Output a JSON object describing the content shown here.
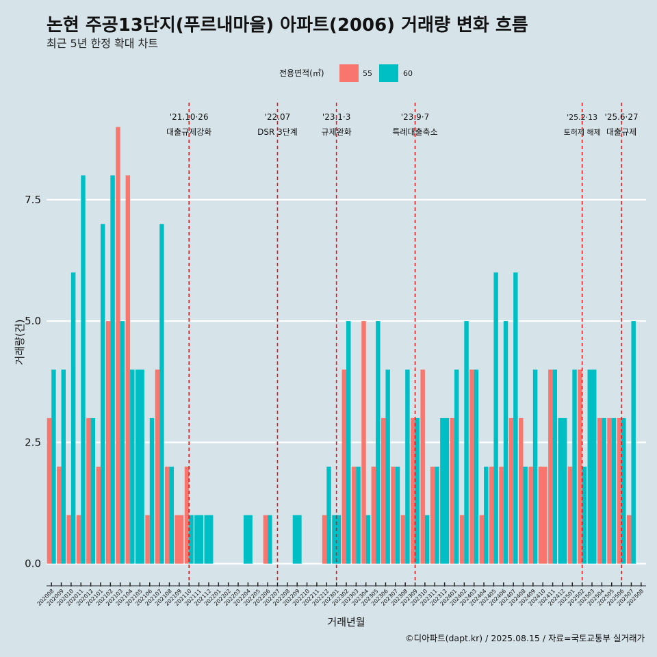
{
  "chart_data": {
    "type": "bar",
    "title": "논현 주공13단지(푸르내마을) 아파트(2006) 거래량 변화 흐름",
    "subtitle": "최근 5년 한정 확대 차트",
    "xlabel": "거래년월",
    "ylabel": "거래량(건)",
    "ylim": [
      -0.4,
      9.5
    ],
    "yticks": [
      0,
      2.5,
      5,
      7.5
    ],
    "ytick_labels": [
      "0.0",
      "2.5",
      "5.0",
      "7.5"
    ],
    "legend": {
      "title": "전용면적(㎡)",
      "position": "top",
      "entries": [
        {
          "name": "55",
          "color": "#f8766d"
        },
        {
          "name": "60",
          "color": "#00bfc4"
        }
      ]
    },
    "categories": [
      "202008",
      "202009",
      "202010",
      "202011",
      "202012",
      "202101",
      "202102",
      "202103",
      "202104",
      "202105",
      "202106",
      "202107",
      "202108",
      "202109",
      "202110",
      "202111",
      "202112",
      "202201",
      "202202",
      "202203",
      "202204",
      "202205",
      "202206",
      "202207",
      "202208",
      "202209",
      "202210",
      "202211",
      "202212",
      "202301",
      "202302",
      "202303",
      "202304",
      "202305",
      "202306",
      "202307",
      "202308",
      "202309",
      "202310",
      "202311",
      "202312",
      "202401",
      "202402",
      "202403",
      "202404",
      "202405",
      "202406",
      "202407",
      "202408",
      "202409",
      "202410",
      "202411",
      "202412",
      "202501",
      "202502",
      "202503",
      "202504",
      "202505",
      "202506",
      "202507",
      "202508"
    ],
    "series": [
      {
        "name": "55",
        "color": "#f8766d",
        "values": [
          3,
          2,
          1,
          1,
          3,
          2,
          5,
          9,
          8,
          null,
          1,
          4,
          2,
          1,
          2,
          null,
          null,
          null,
          null,
          null,
          null,
          null,
          1,
          null,
          null,
          null,
          null,
          null,
          1,
          null,
          4,
          2,
          5,
          2,
          3,
          2,
          1,
          3,
          4,
          2,
          null,
          3,
          1,
          4,
          1,
          2,
          2,
          3,
          3,
          2,
          2,
          4,
          null,
          2,
          4,
          null,
          3,
          3,
          3,
          1,
          null
        ]
      },
      {
        "name": "60",
        "color": "#00bfc4",
        "values": [
          4,
          4,
          6,
          8,
          3,
          7,
          8,
          5,
          4,
          4,
          3,
          7,
          2,
          null,
          1,
          1,
          1,
          null,
          null,
          null,
          1,
          null,
          1,
          null,
          null,
          1,
          null,
          null,
          2,
          1,
          5,
          2,
          1,
          5,
          4,
          2,
          4,
          3,
          1,
          2,
          3,
          4,
          5,
          4,
          2,
          6,
          5,
          6,
          2,
          4,
          null,
          4,
          3,
          4,
          2,
          4,
          3,
          3,
          3,
          5,
          null
        ]
      }
    ],
    "events": [
      {
        "category": "202110",
        "date": "'21.10·26",
        "label": "대출규제강화"
      },
      {
        "category": "202207",
        "date": "'22.07",
        "label": "DSR 3단계"
      },
      {
        "category": "202301",
        "date": "'23.1·3",
        "label": "규제완화"
      },
      {
        "category": "202309",
        "date": "'23.9·7",
        "label": "특례대출축소"
      },
      {
        "category": "202502",
        "date": "'25.2·13",
        "label": "토허제 해제"
      },
      {
        "category": "202506",
        "date": "'25.6·27",
        "label": "대출규제"
      }
    ],
    "caption": "©디아파트(dapt.kr) / 2025.08.15 / 자료=국토교통부 실거래가"
  }
}
